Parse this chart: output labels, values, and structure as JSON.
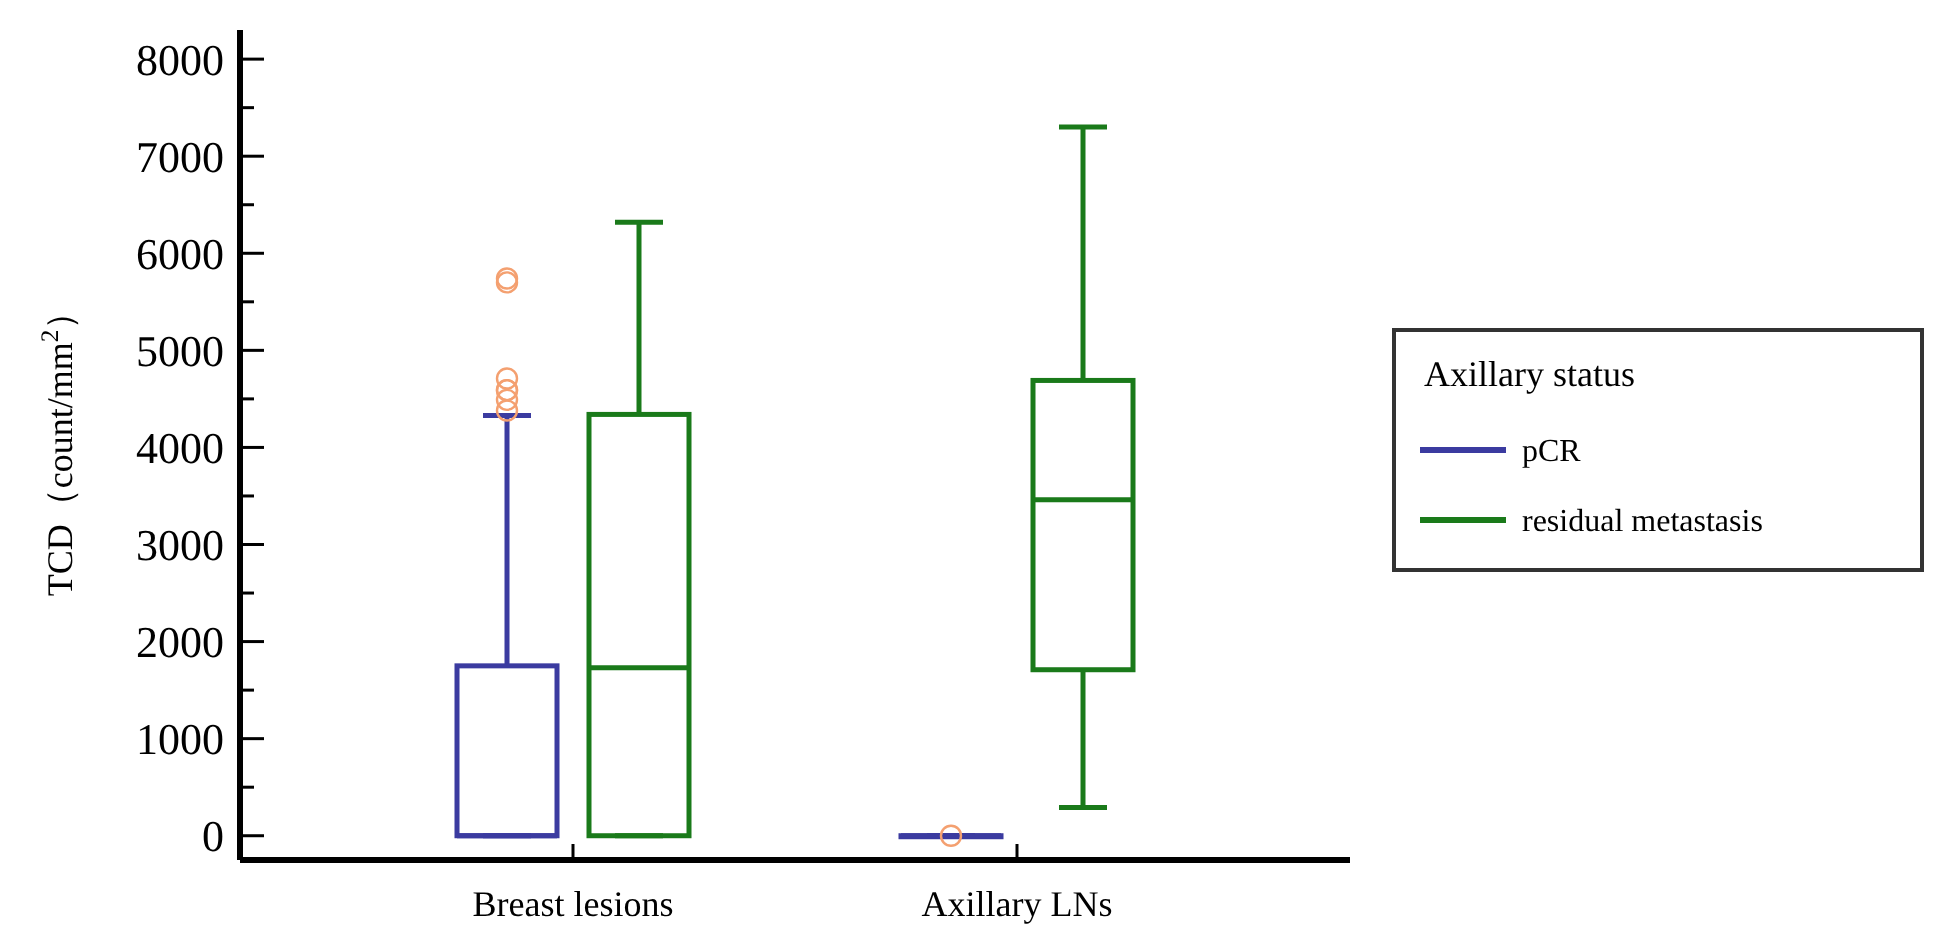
{
  "chart_data": {
    "type": "box",
    "ylabel": "TCD（count/mm$^{2}$）",
    "legend_title": "Axillary status",
    "legend": "right",
    "grid": false,
    "categories": [
      "Breast lesions",
      "Axillary LNs"
    ],
    "ylim": [
      -250,
      8300
    ],
    "yticks": [
      0,
      {
        "value": 500,
        "label": null
      },
      1000,
      {
        "value": 1500,
        "label": null
      },
      2000,
      {
        "value": 2500,
        "label": null
      },
      3000,
      {
        "value": 3500,
        "label": null
      },
      4000,
      {
        "value": 4500,
        "label": null
      },
      5000,
      {
        "value": 5500,
        "label": null
      },
      6000,
      {
        "value": 6500,
        "label": null
      },
      7000,
      {
        "value": 7500,
        "label": null
      },
      8000
    ],
    "series": [
      {
        "name": "pCR",
        "color": "#3b3ba0",
        "boxes": [
          {
            "low": 0,
            "q1": 0,
            "median": 0,
            "q3": 1750,
            "high": 4330,
            "outliers": [
              5700,
              5740,
              4710,
              4590,
              4590,
              4490,
              4380
            ]
          },
          {
            "low": 0,
            "q1": 0,
            "median": 0,
            "q3": 0,
            "high": 0,
            "outliers": [
              0
            ]
          }
        ]
      },
      {
        "name": "residual metastasis",
        "color": "#1a7a1a",
        "boxes": [
          {
            "low": 0,
            "q1": 0,
            "median": 1730,
            "q3": 4340,
            "high": 6320
          },
          {
            "low": 290,
            "q1": 1710,
            "median": 3460,
            "q3": 4690,
            "high": 7300
          }
        ]
      }
    ]
  }
}
